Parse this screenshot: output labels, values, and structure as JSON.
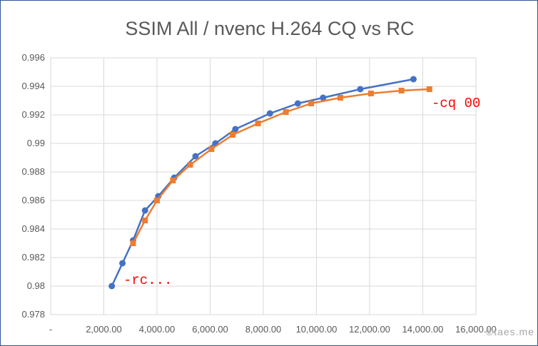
{
  "chart_data": {
    "type": "line",
    "title": "SSIM All / nvenc H.264 CQ vs RC",
    "xlabel": "",
    "ylabel": "",
    "xlim": [
      0,
      16000
    ],
    "ylim": [
      0.978,
      0.996
    ],
    "grid": true,
    "x_tick_values": [
      0,
      2000,
      4000,
      6000,
      8000,
      10000,
      12000,
      14000,
      16000
    ],
    "x_tick_labels": [
      "-",
      "2,000.00",
      "4,000.00",
      "6,000.00",
      "8,000.00",
      "10,000.00",
      "12,000.00",
      "14,000.00",
      "16,000.00"
    ],
    "y_tick_values": [
      0.978,
      0.98,
      0.982,
      0.984,
      0.986,
      0.988,
      0.99,
      0.992,
      0.994,
      0.996
    ],
    "y_tick_labels": [
      "0.978",
      "0.98",
      "0.982",
      "0.984",
      "0.986",
      "0.988",
      "0.99",
      "0.992",
      "0.994",
      "0.996"
    ],
    "series": [
      {
        "name": "rc",
        "color": "#4472c4",
        "marker": "circle",
        "x": [
          2300,
          2700,
          3100,
          3550,
          4050,
          4650,
          5450,
          6200,
          6950,
          8250,
          9300,
          10250,
          11650,
          13650
        ],
        "y": [
          0.98,
          0.9816,
          0.9832,
          0.9853,
          0.9863,
          0.9876,
          0.9891,
          0.99,
          0.991,
          0.9921,
          0.9928,
          0.9932,
          0.9938,
          0.9945
        ]
      },
      {
        "name": "cq",
        "color": "#ed7d31",
        "marker": "square",
        "x": [
          3100,
          3550,
          4000,
          4600,
          5250,
          6050,
          6850,
          7800,
          8850,
          9800,
          10900,
          12050,
          13200,
          14250
        ],
        "y": [
          0.983,
          0.9846,
          0.986,
          0.9874,
          0.9885,
          0.9896,
          0.9906,
          0.9914,
          0.9922,
          0.9928,
          0.9932,
          0.9935,
          0.9937,
          0.9938
        ]
      }
    ],
    "annotations": [
      {
        "text": "-rc...",
        "near_series": "rc",
        "near_point": "first"
      },
      {
        "text": "-cq 00",
        "near_series": "cq",
        "near_point": "last"
      }
    ],
    "watermark": "©taes.me"
  },
  "colors": {
    "grid": "#d9d9d9",
    "tick_text": "#595959",
    "annotation": "#ff0000",
    "frame_border": "#2f5597"
  }
}
